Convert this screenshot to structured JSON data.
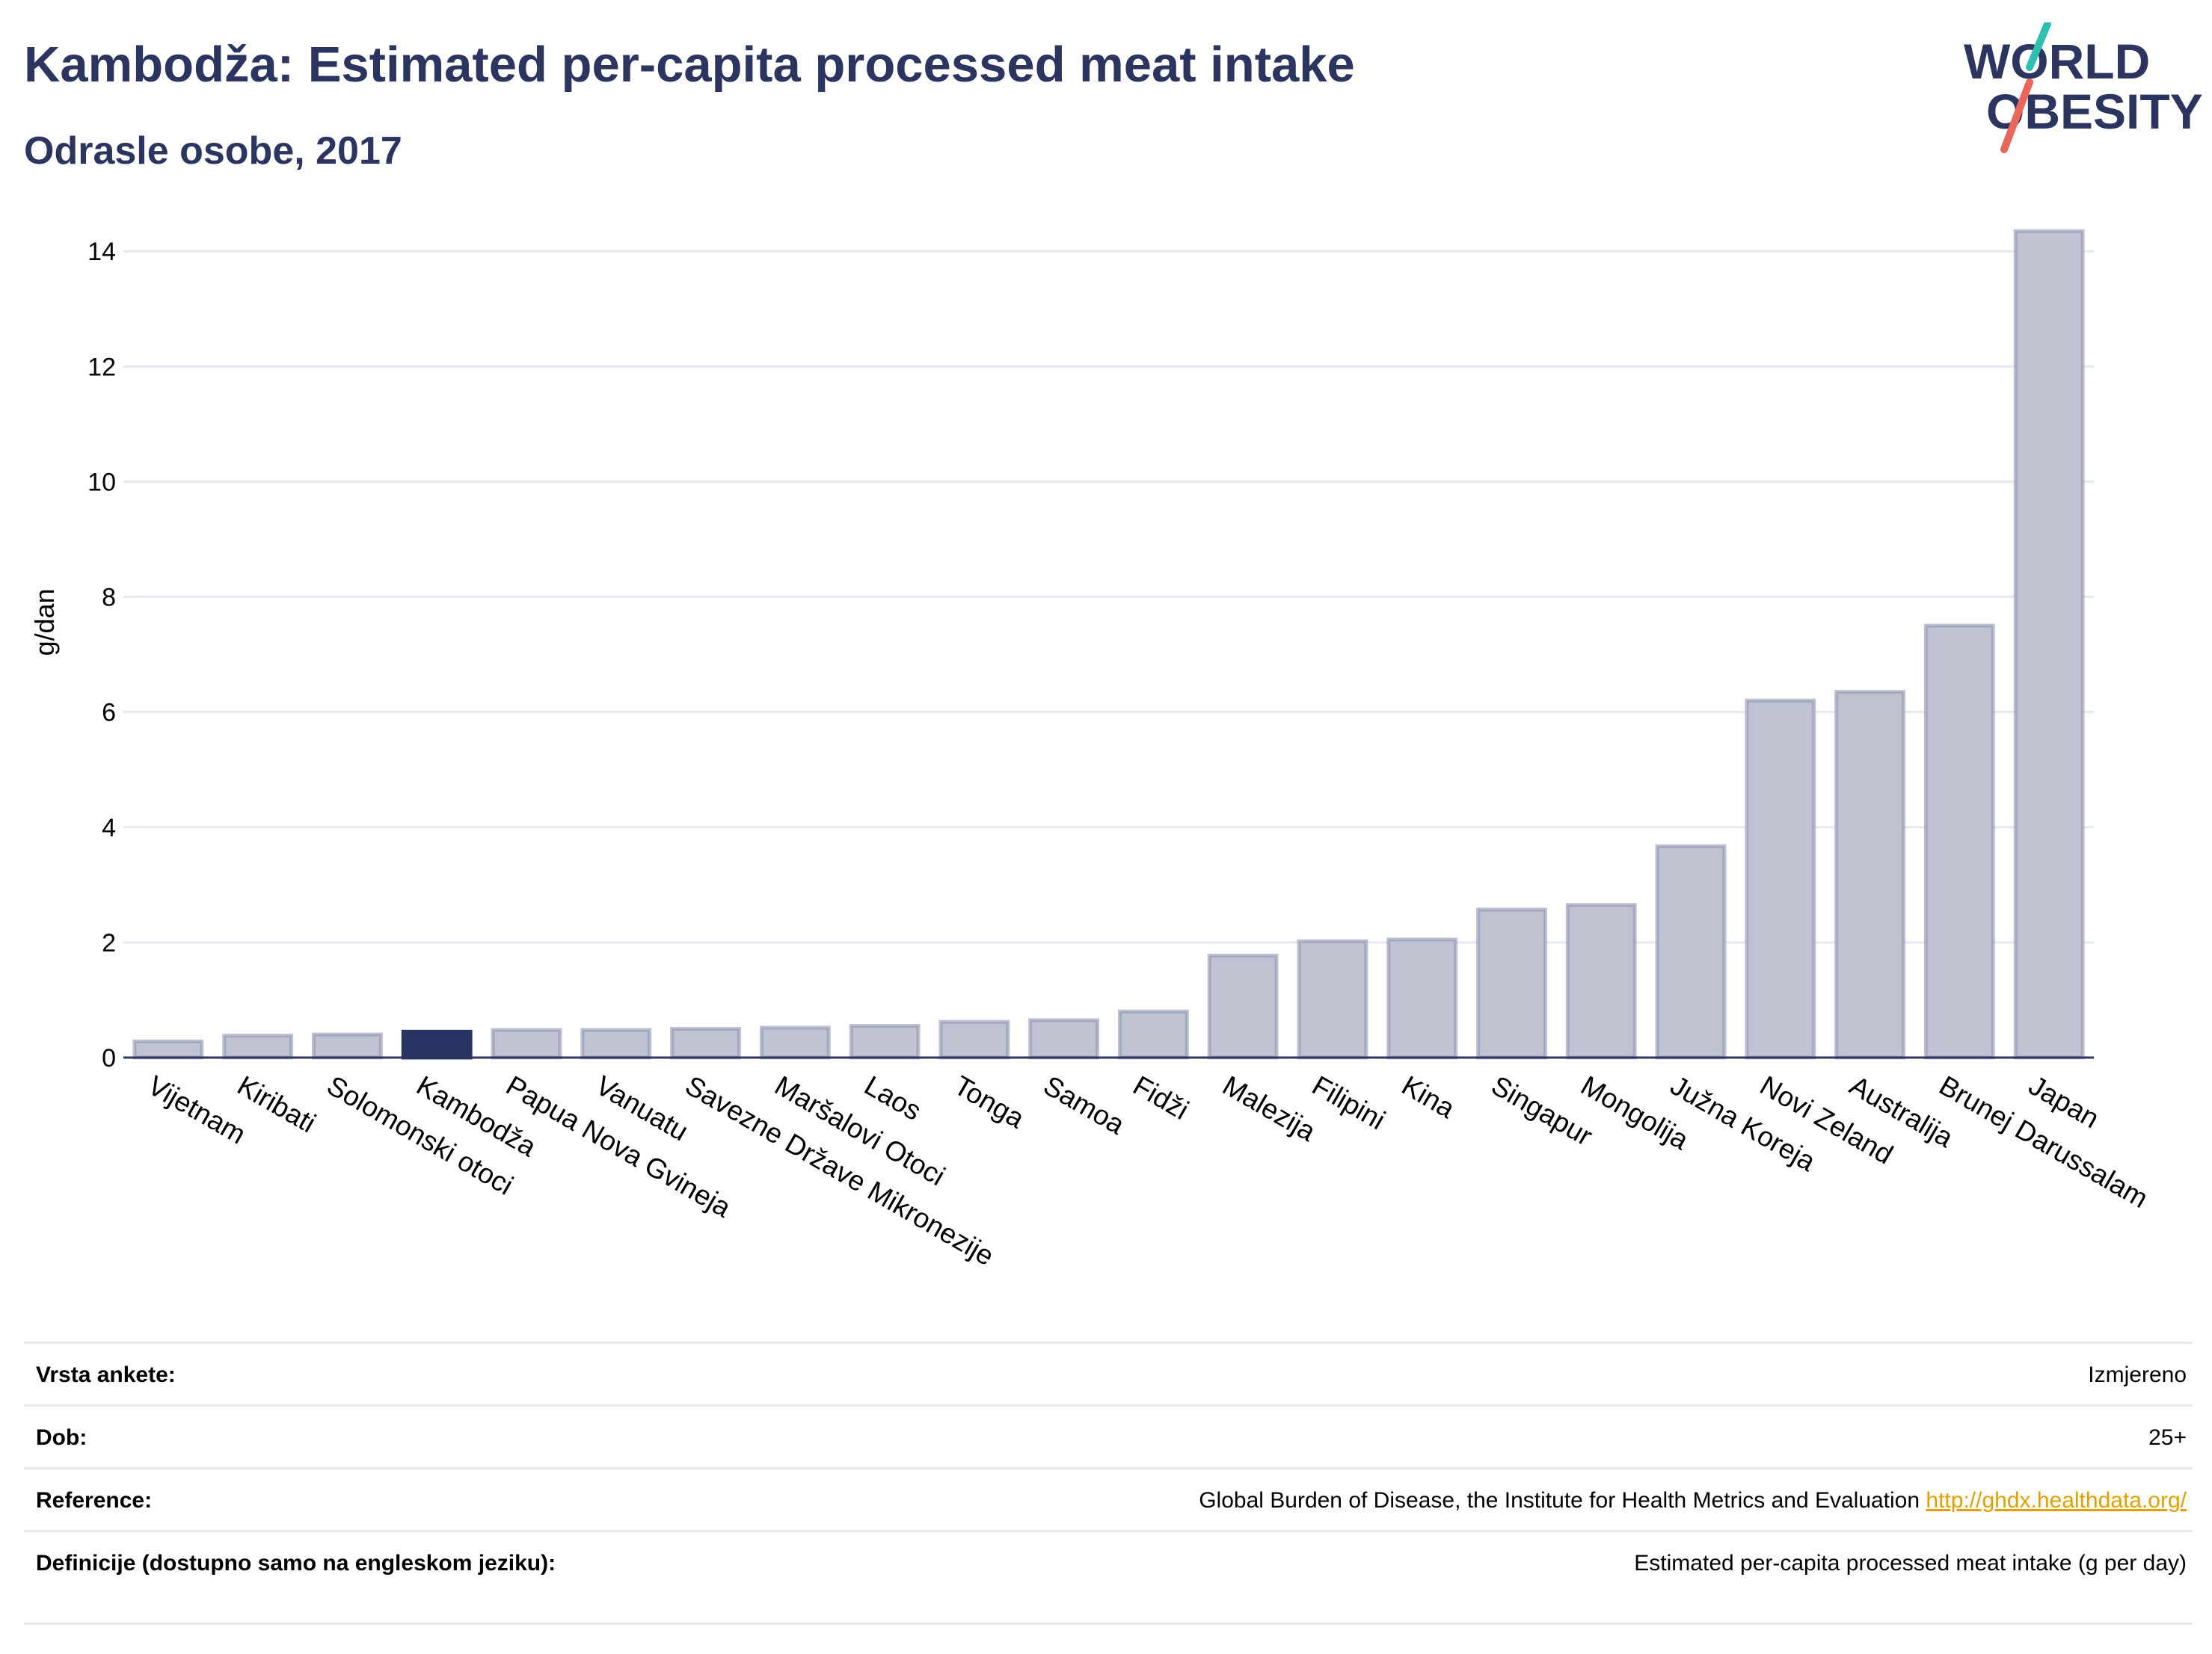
{
  "header": {
    "title": "Kambodža: Estimated per-capita processed meat intake",
    "subtitle": "Odrasle osobe, 2017"
  },
  "logo": {
    "line1": "WORLD",
    "line2": "OBESITY"
  },
  "colors": {
    "title": "#2b3560",
    "highlight_bar": "#283462",
    "bar": "#bfc2d1",
    "bar_outline": "#8f94b0",
    "link": "#e0a000"
  },
  "chart_data": {
    "type": "bar",
    "ylabel": "g/dan",
    "xlabel": "",
    "ylim": [
      0,
      14.6
    ],
    "yticks": [
      0,
      2,
      4,
      6,
      8,
      10,
      12,
      14
    ],
    "grid": true,
    "highlight": "Kambodža",
    "categories": [
      "Vijetnam",
      "Kiribati",
      "Solomonski otoci",
      "Kambodža",
      "Papua Nova Gvineja",
      "Vanuatu",
      "Savezne Države Mikronezije",
      "Maršalovi Otoci",
      "Laos",
      "Tonga",
      "Samoa",
      "Fidži",
      "Malezija",
      "Filipini",
      "Kina",
      "Singapur",
      "Mongolija",
      "Južna Koreja",
      "Novi Zeland",
      "Australija",
      "Brunej Darussalam",
      "Japan"
    ],
    "values": [
      0.28,
      0.38,
      0.4,
      0.45,
      0.48,
      0.48,
      0.5,
      0.52,
      0.55,
      0.62,
      0.65,
      0.8,
      1.77,
      2.02,
      2.05,
      2.57,
      2.65,
      3.67,
      6.2,
      6.35,
      7.5,
      14.35
    ]
  },
  "info": [
    {
      "label": "Vrsta ankete:",
      "value": "Izmjereno"
    },
    {
      "label": "Dob:",
      "value": "25+"
    },
    {
      "label": "Reference:",
      "value": "Global Burden of Disease, the Institute for Health Metrics and Evaluation",
      "link": "http://ghdx.healthdata.org/"
    },
    {
      "label": "Definicije (dostupno samo na engleskom jeziku):",
      "value": "Estimated per-capita processed meat intake (g per day)"
    }
  ]
}
